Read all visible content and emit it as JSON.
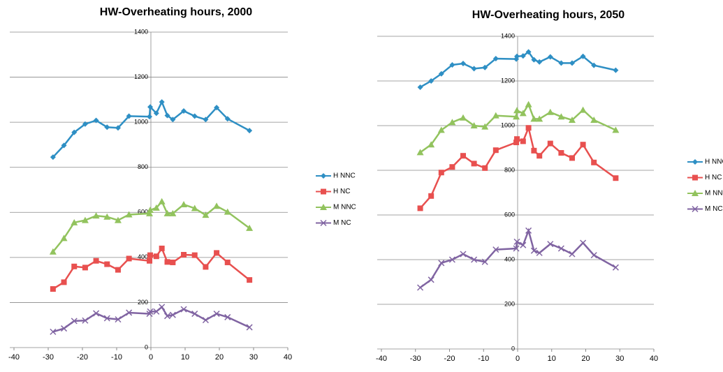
{
  "chart_data": [
    {
      "type": "line",
      "title": "HW-Overheating hours, 2000",
      "x": [
        -28.6,
        -25.4,
        -22.4,
        -19.2,
        -16,
        -12.8,
        -9.6,
        -6.4,
        -0.4,
        -0.2,
        1.6,
        3.2,
        4.8,
        6.4,
        9.6,
        12.8,
        16,
        19.2,
        22.4,
        28.8
      ],
      "xlim": [
        -40,
        40
      ],
      "xticks": [
        -40,
        -30,
        -20,
        -10,
        0,
        10,
        20,
        30,
        40
      ],
      "ylim": [
        0,
        1400
      ],
      "yticks": [
        0,
        200,
        400,
        600,
        800,
        1000,
        1200,
        1400
      ],
      "grid": true,
      "legend": "right",
      "series": [
        {
          "name": "H NNC",
          "color": "#2e8fc4",
          "marker": "diamond",
          "values": [
            845,
            897,
            955,
            992,
            1008,
            978,
            975,
            1027,
            1025,
            1068,
            1040,
            1090,
            1030,
            1012,
            1050,
            1027,
            1012,
            1065,
            1015,
            963
          ]
        },
        {
          "name": "H NC",
          "color": "#e8504f",
          "marker": "square",
          "values": [
            260,
            290,
            360,
            355,
            385,
            370,
            345,
            395,
            385,
            410,
            405,
            440,
            380,
            378,
            412,
            410,
            358,
            420,
            378,
            300
          ]
        },
        {
          "name": "M NNC",
          "color": "#92c35e",
          "marker": "triangle",
          "values": [
            425,
            485,
            555,
            565,
            585,
            580,
            565,
            590,
            595,
            610,
            620,
            648,
            595,
            595,
            635,
            618,
            588,
            628,
            602,
            530
          ]
        },
        {
          "name": "M NC",
          "color": "#8064a2",
          "marker": "x",
          "values": [
            70,
            85,
            118,
            120,
            152,
            130,
            125,
            155,
            150,
            160,
            160,
            180,
            140,
            145,
            170,
            150,
            122,
            150,
            135,
            90
          ]
        }
      ]
    },
    {
      "type": "line",
      "title": "HW-Overheating hours, 2050",
      "x": [
        -28.6,
        -25.4,
        -22.4,
        -19.2,
        -16,
        -12.8,
        -9.6,
        -6.4,
        -0.4,
        -0.2,
        1.6,
        3.2,
        4.8,
        6.4,
        9.6,
        12.8,
        16,
        19.2,
        22.4,
        28.8
      ],
      "xlim": [
        -40,
        40
      ],
      "xticks": [
        -40,
        -30,
        -20,
        -10,
        0,
        10,
        20,
        30,
        40
      ],
      "ylim": [
        0,
        1400
      ],
      "yticks": [
        0,
        200,
        400,
        600,
        800,
        1000,
        1200,
        1400
      ],
      "grid": true,
      "legend": "right",
      "series": [
        {
          "name": "H NNC",
          "color": "#2e8fc4",
          "marker": "diamond",
          "values": [
            1172,
            1200,
            1232,
            1272,
            1278,
            1255,
            1260,
            1300,
            1298,
            1310,
            1312,
            1330,
            1295,
            1285,
            1308,
            1280,
            1280,
            1310,
            1270,
            1248
          ]
        },
        {
          "name": "H NC",
          "color": "#e8504f",
          "marker": "square",
          "values": [
            630,
            685,
            790,
            815,
            865,
            830,
            810,
            890,
            925,
            940,
            930,
            990,
            888,
            865,
            920,
            878,
            855,
            915,
            835,
            765
          ]
        },
        {
          "name": "M NNC",
          "color": "#92c35e",
          "marker": "triangle",
          "values": [
            880,
            915,
            980,
            1015,
            1035,
            1000,
            995,
            1045,
            1040,
            1068,
            1055,
            1095,
            1030,
            1030,
            1060,
            1040,
            1025,
            1070,
            1025,
            980
          ]
        },
        {
          "name": "M NC",
          "color": "#8064a2",
          "marker": "x",
          "values": [
            275,
            310,
            385,
            400,
            425,
            400,
            390,
            445,
            450,
            480,
            465,
            530,
            440,
            430,
            470,
            450,
            425,
            475,
            420,
            365
          ]
        }
      ]
    }
  ]
}
